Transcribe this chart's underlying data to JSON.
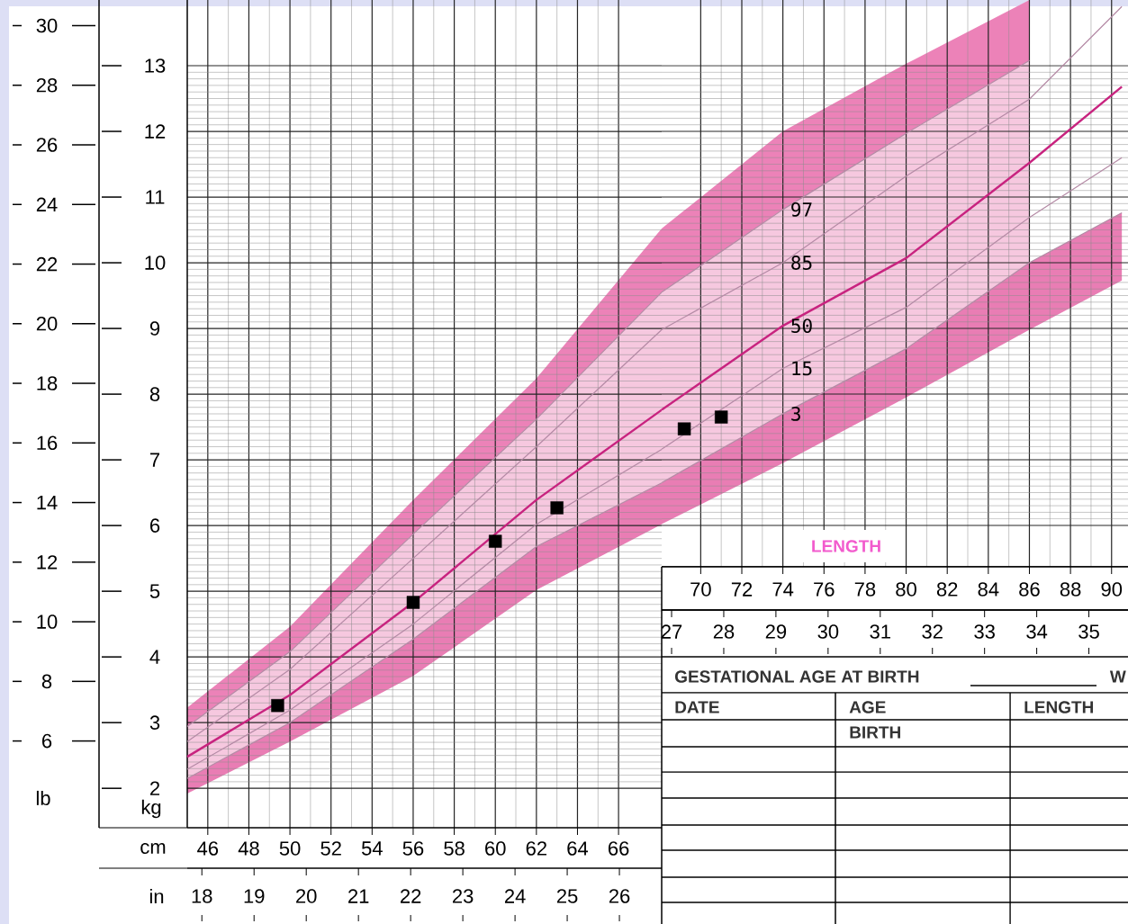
{
  "chart_data": [
    {
      "type": "line",
      "xlabel": "cm",
      "ylabel": "kg",
      "y2label": "lb",
      "x2label": "in",
      "x": [
        45,
        50,
        56,
        62,
        68.1
      ],
      "series": [
        {
          "color": "#b48aa5",
          "values": [
            2.94,
            4.08,
            5.87,
            7.62,
            9.55
          ],
          "lower": [
            2.94,
            4.08,
            5.87,
            7.62,
            9.55
          ],
          "upper": [
            3.23,
            4.46,
            6.39,
            8.24,
            10.52
          ]
        },
        {
          "color": "#b48aa5",
          "values": [
            2.71,
            3.81,
            5.5,
            7.2,
            8.98
          ]
        },
        {
          "color": "#c8237f",
          "values": [
            2.48,
            3.42,
            4.83,
            6.39,
            7.76
          ],
          "lower": [
            2.15,
            3.0,
            4.27,
            5.68,
            6.65
          ],
          "upper": [
            2.94,
            4.08,
            5.87,
            7.62,
            9.55
          ]
        },
        {
          "color": "#b48aa5",
          "values": [
            2.29,
            3.19,
            4.5,
            6.02,
            7.16
          ]
        },
        {
          "color": "#b48aa5",
          "values": [
            2.15,
            3.0,
            4.27,
            5.68,
            6.65
          ],
          "lower": [
            1.92,
            2.71,
            3.71,
            5.02,
            6.02
          ],
          "upper": [
            2.15,
            3.0,
            4.27,
            5.68,
            6.65
          ]
        },
        {
          "type": "scatter",
          "marker": "square",
          "color": "#000000",
          "x": [
            49.4,
            56,
            60,
            63
          ],
          "values": [
            3.26,
            4.83,
            5.76,
            6.27
          ]
        }
      ],
      "xlim": [
        45,
        68.1
      ],
      "xticks": [
        46,
        48,
        50,
        52,
        54,
        56,
        58,
        60,
        62,
        64,
        66
      ],
      "ylim": [
        1.4,
        14
      ],
      "yticks": [
        2,
        3,
        4,
        5,
        6,
        7,
        8,
        9,
        10,
        11,
        12,
        13
      ],
      "x2lim": [
        17.72,
        26.81
      ],
      "x2ticks": [
        18,
        19,
        20,
        21,
        22,
        23,
        24,
        25,
        26
      ],
      "y2lim": [
        3.09,
        30.86
      ],
      "y2ticks": [
        6,
        8,
        10,
        12,
        14,
        16,
        18,
        20,
        22,
        24,
        26,
        28,
        30
      ],
      "grid": true
    },
    {
      "type": "line",
      "tick_labels": "x",
      "x": [
        68.1,
        74,
        80,
        86,
        90.5
      ],
      "series": [
        {
          "name": "97",
          "color": "#b48aa5",
          "values": [
            9.55,
            10.81,
            11.97,
            13.08,
            null
          ],
          "lower": [
            9.55,
            10.81,
            11.97,
            13.08,
            null
          ],
          "upper": [
            10.52,
            12.0,
            13.03,
            14.0,
            null
          ]
        },
        {
          "name": "85",
          "color": "#b48aa5",
          "values": [
            8.98,
            10.0,
            11.32,
            12.49,
            13.9
          ]
        },
        {
          "name": "50",
          "color": "#c8237f",
          "values": [
            7.76,
            9.04,
            10.07,
            11.52,
            12.68
          ],
          "lower": [
            6.65,
            7.7,
            8.69,
            10.0,
            null
          ],
          "upper": [
            9.55,
            10.81,
            11.97,
            13.08,
            null
          ]
        },
        {
          "name": "15",
          "color": "#b48aa5",
          "values": [
            7.16,
            8.39,
            9.32,
            10.69,
            11.6
          ]
        },
        {
          "name": "3",
          "color": "#b48aa5",
          "values": [
            6.65,
            7.7,
            8.69,
            10.0,
            10.76
          ],
          "lower": [
            6.02,
            6.95,
            7.95,
            8.98,
            9.73
          ],
          "upper": [
            6.65,
            7.7,
            8.69,
            10.0,
            10.76
          ]
        },
        {
          "type": "scatter",
          "marker": "square",
          "color": "#000000",
          "x": [
            69.2,
            71
          ],
          "values": [
            7.47,
            7.65
          ]
        }
      ],
      "xlim": [
        68.1,
        90.8
      ],
      "xticks": [
        70,
        72,
        74,
        76,
        78,
        80,
        82,
        84,
        86,
        88,
        90
      ],
      "ylim": [
        5.37,
        14
      ],
      "yticks": [
        6,
        7,
        8,
        9,
        10,
        11,
        12,
        13
      ],
      "x2lim": [
        26.81,
        35.75
      ],
      "x2ticks": [
        27,
        28,
        29,
        30,
        31,
        32,
        33,
        34,
        35
      ],
      "grid": true,
      "annotations": [
        "LENGTH",
        "GESTATIONAL AGE AT BIRTH",
        "W",
        "DATE",
        "AGE",
        "BIRTH",
        "LENGTH"
      ]
    }
  ]
}
